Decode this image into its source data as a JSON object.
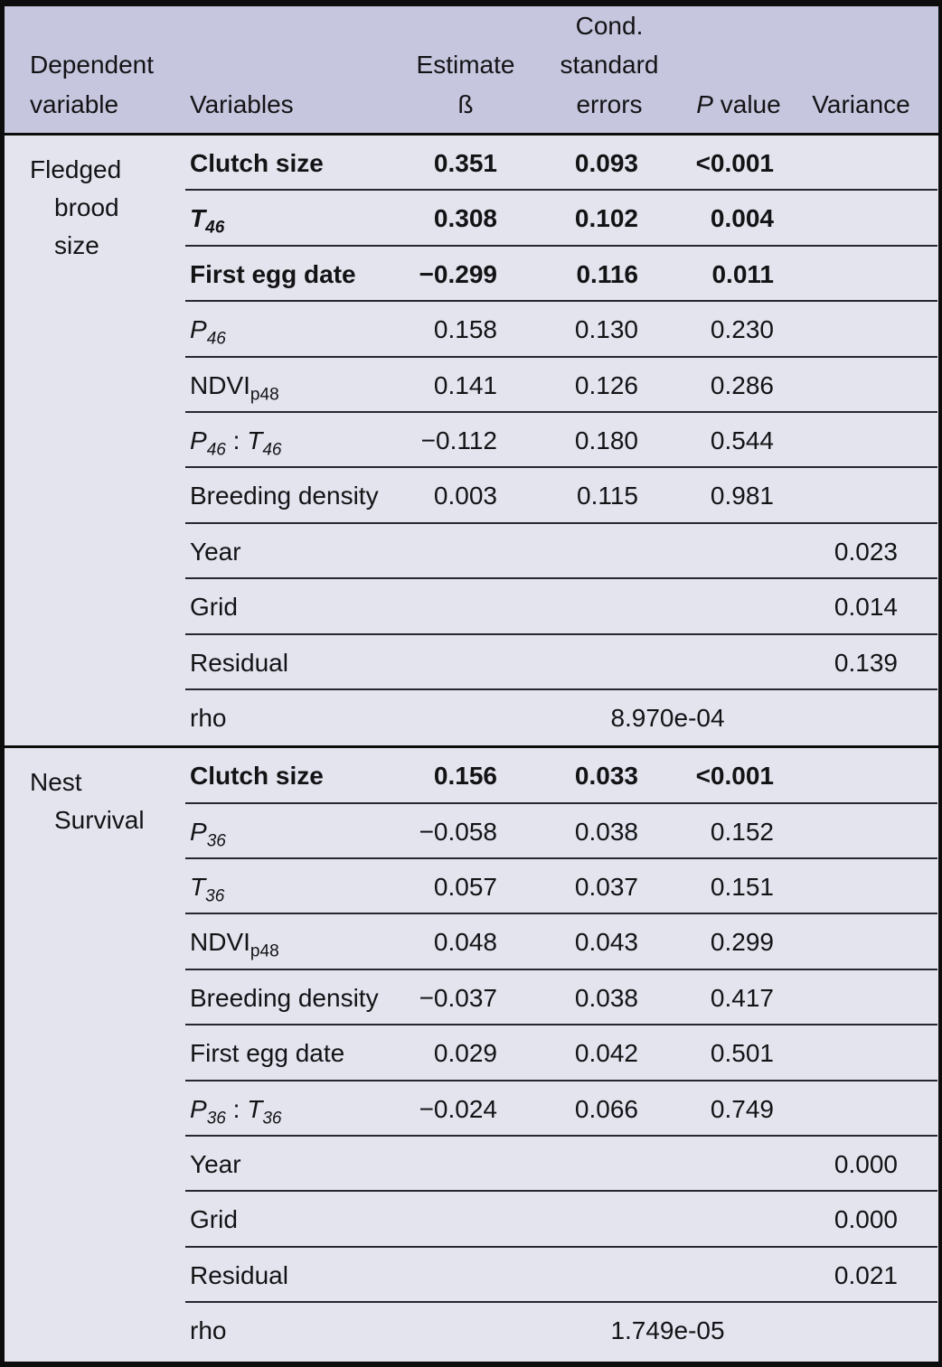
{
  "colors": {
    "header_bg": "#c6c6de",
    "body_bg": "#e4e4ef",
    "frame_border": "#0d0d0d",
    "row_line": "#26262e",
    "text": "#131316"
  },
  "table": {
    "headers": {
      "dependent_variable": "Dependent\nvariable",
      "variables": "Variables",
      "estimate": "Estimate\nß",
      "cond_standard_errors": "Cond.\nstandard\nerrors",
      "p_value_italic": "P",
      "p_value_rest": " value",
      "variance": "Variance"
    },
    "sections": [
      {
        "dependent_variable": "Fledged\nbrood\nsize",
        "rows": [
          {
            "label": [
              {
                "t": "Clutch size",
                "b": true
              }
            ],
            "estimate": "0.351",
            "se": "0.093",
            "p": "<0.001",
            "variance": "",
            "bold": true
          },
          {
            "label": [
              {
                "t": "T",
                "b": true,
                "i": true,
                "sub": "46"
              }
            ],
            "estimate": "0.308",
            "se": "0.102",
            "p": "0.004",
            "variance": "",
            "bold": true
          },
          {
            "label": [
              {
                "t": "First egg date",
                "b": true
              }
            ],
            "estimate": "−0.299",
            "se": "0.116",
            "p": "0.011",
            "variance": "",
            "bold": true
          },
          {
            "label": [
              {
                "t": "P",
                "i": true,
                "sub": "46"
              }
            ],
            "estimate": "0.158",
            "se": "0.130",
            "p": "0.230",
            "variance": "",
            "bold": false
          },
          {
            "label": [
              {
                "t": "NDVI",
                "sub": "p48"
              }
            ],
            "estimate": "0.141",
            "se": "0.126",
            "p": "0.286",
            "variance": "",
            "bold": false
          },
          {
            "label": [
              {
                "t": "P",
                "i": true,
                "sub": "46"
              },
              {
                "t": " : "
              },
              {
                "t": "T",
                "i": true,
                "sub": "46"
              }
            ],
            "estimate": "−0.112",
            "se": "0.180",
            "p": "0.544",
            "variance": "",
            "bold": false
          },
          {
            "label": [
              {
                "t": "Breeding density"
              }
            ],
            "estimate": "0.003",
            "se": "0.115",
            "p": "0.981",
            "variance": "",
            "bold": false
          },
          {
            "label": [
              {
                "t": "Year"
              }
            ],
            "estimate": "",
            "se": "",
            "p": "",
            "variance": "0.023",
            "bold": false
          },
          {
            "label": [
              {
                "t": "Grid"
              }
            ],
            "estimate": "",
            "se": "",
            "p": "",
            "variance": "0.014",
            "bold": false
          },
          {
            "label": [
              {
                "t": "Residual"
              }
            ],
            "estimate": "",
            "se": "",
            "p": "",
            "variance": "0.139",
            "bold": false
          }
        ],
        "rho": {
          "label": "rho",
          "value": "8.970e-04"
        }
      },
      {
        "dependent_variable": "Nest\nSurvival",
        "rows": [
          {
            "label": [
              {
                "t": "Clutch size",
                "b": true
              }
            ],
            "estimate": "0.156",
            "se": "0.033",
            "p": "<0.001",
            "variance": "",
            "bold": true
          },
          {
            "label": [
              {
                "t": "P",
                "i": true,
                "sub": "36"
              }
            ],
            "estimate": "−0.058",
            "se": "0.038",
            "p": "0.152",
            "variance": "",
            "bold": false
          },
          {
            "label": [
              {
                "t": "T",
                "i": true,
                "sub": "36"
              }
            ],
            "estimate": "0.057",
            "se": "0.037",
            "p": "0.151",
            "variance": "",
            "bold": false
          },
          {
            "label": [
              {
                "t": "NDVI",
                "sub": "p48"
              }
            ],
            "estimate": "0.048",
            "se": "0.043",
            "p": "0.299",
            "variance": "",
            "bold": false
          },
          {
            "label": [
              {
                "t": "Breeding density"
              }
            ],
            "estimate": "−0.037",
            "se": "0.038",
            "p": "0.417",
            "variance": "",
            "bold": false
          },
          {
            "label": [
              {
                "t": "First egg date"
              }
            ],
            "estimate": "0.029",
            "se": "0.042",
            "p": "0.501",
            "variance": "",
            "bold": false
          },
          {
            "label": [
              {
                "t": "P",
                "i": true,
                "sub": "36"
              },
              {
                "t": " : "
              },
              {
                "t": "T",
                "i": true,
                "sub": "36"
              }
            ],
            "estimate": "−0.024",
            "se": "0.066",
            "p": "0.749",
            "variance": "",
            "bold": false
          },
          {
            "label": [
              {
                "t": "Year"
              }
            ],
            "estimate": "",
            "se": "",
            "p": "",
            "variance": "0.000",
            "bold": false
          },
          {
            "label": [
              {
                "t": "Grid"
              }
            ],
            "estimate": "",
            "se": "",
            "p": "",
            "variance": "0.000",
            "bold": false
          },
          {
            "label": [
              {
                "t": "Residual"
              }
            ],
            "estimate": "",
            "se": "",
            "p": "",
            "variance": "0.021",
            "bold": false
          }
        ],
        "rho": {
          "label": "rho",
          "value": "1.749e-05"
        }
      }
    ]
  }
}
